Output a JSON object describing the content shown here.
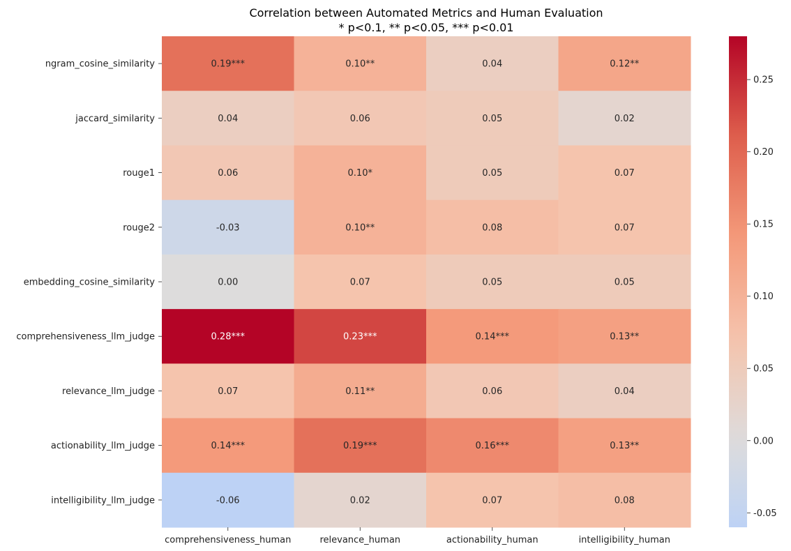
{
  "chart_data": {
    "type": "heatmap",
    "title_lines": [
      "Correlation between Automated Metrics and Human Evaluation",
      "* p<0.1, ** p<0.05, *** p<0.01"
    ],
    "rows": [
      "ngram_cosine_similarity",
      "jaccard_similarity",
      "rouge1",
      "rouge2",
      "embedding_cosine_similarity",
      "comprehensiveness_llm_judge",
      "relevance_llm_judge",
      "actionability_llm_judge",
      "intelligibility_llm_judge"
    ],
    "columns": [
      "comprehensiveness_human",
      "relevance_human",
      "actionability_human",
      "intelligibility_human"
    ],
    "values": [
      [
        0.19,
        0.1,
        0.04,
        0.12
      ],
      [
        0.04,
        0.06,
        0.05,
        0.02
      ],
      [
        0.06,
        0.1,
        0.05,
        0.07
      ],
      [
        -0.03,
        0.1,
        0.08,
        0.07
      ],
      [
        0.0,
        0.07,
        0.05,
        0.05
      ],
      [
        0.28,
        0.23,
        0.14,
        0.13
      ],
      [
        0.07,
        0.11,
        0.06,
        0.04
      ],
      [
        0.14,
        0.19,
        0.16,
        0.13
      ],
      [
        -0.06,
        0.02,
        0.07,
        0.08
      ]
    ],
    "annotations": [
      [
        "0.19***",
        "0.10**",
        "0.04",
        "0.12**"
      ],
      [
        "0.04",
        "0.06",
        "0.05",
        "0.02"
      ],
      [
        "0.06",
        "0.10*",
        "0.05",
        "0.07"
      ],
      [
        "-0.03",
        "0.10**",
        "0.08",
        "0.07"
      ],
      [
        "0.00",
        "0.07",
        "0.05",
        "0.05"
      ],
      [
        "0.28***",
        "0.23***",
        "0.14***",
        "0.13**"
      ],
      [
        "0.07",
        "0.11**",
        "0.06",
        "0.04"
      ],
      [
        "0.14***",
        "0.19***",
        "0.16***",
        "0.13**"
      ],
      [
        "-0.06",
        "0.02",
        "0.07",
        "0.08"
      ]
    ],
    "colormap": "coolwarm",
    "center": 0,
    "vmin": -0.06,
    "vmax": 0.28,
    "colorbar_ticks": [
      "0.25",
      "0.20",
      "0.15",
      "0.10",
      "0.05",
      "0.00",
      "-0.05"
    ],
    "colorbar_tick_values": [
      0.25,
      0.2,
      0.15,
      0.1,
      0.05,
      0.0,
      -0.05
    ],
    "grid": false
  }
}
